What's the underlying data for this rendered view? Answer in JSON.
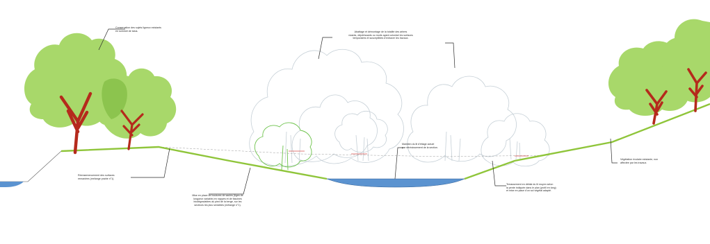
{
  "annotations": [
    {
      "id": "trees-left",
      "text": "Conservation des sujets ligneux existants\nen sommet de talus."
    },
    {
      "id": "cleanup-center",
      "text": "Abattage et démontage de la totalité des arbres\nvivants, dépérissants ou morts ayant colonisé les surfaces\ntemporaires et susceptibles d'entraver les travaux."
    },
    {
      "id": "bank-reshaping",
      "text": "Réensemencement des surfaces\nremaniées (mélange prairie n°1)."
    },
    {
      "id": "trench-planting",
      "text": "Mise en place de boutures de saules (tiges de\nlongueur variable) en nappes et de fascines\nbiodégradables au pied de la berge, sur les\nsecteurs les plus sensibles (mélange n°1)."
    },
    {
      "id": "water-flow",
      "text": "Maintien du lit d'étiage actuel\npar rétrécissement de la section."
    },
    {
      "id": "reprofiling",
      "text": "Terrassement en déblai du lit moyen selon\nla pente indiquée dans le plan (profil en long)\net mise en place d'un sol végétal adapté."
    },
    {
      "id": "vegetation-right",
      "text": "Végétation rivulaire existante, non\naffectée par les travaux."
    }
  ],
  "colors": {
    "tree_fill": "#a8d86a",
    "tree_fill_dark": "#8cc44e",
    "trunk": "#b52a1c",
    "grass_line": "#8fc53a",
    "water": "#5b93d0",
    "existing_tree_outline": "#c5cfd6",
    "planting_outline": "#6cc24a",
    "marker": "#d9534f"
  },
  "icons": [
    "mature-tree-icon",
    "existing-tree-outline-icon",
    "water-channel-icon",
    "leader-line-icon"
  ]
}
